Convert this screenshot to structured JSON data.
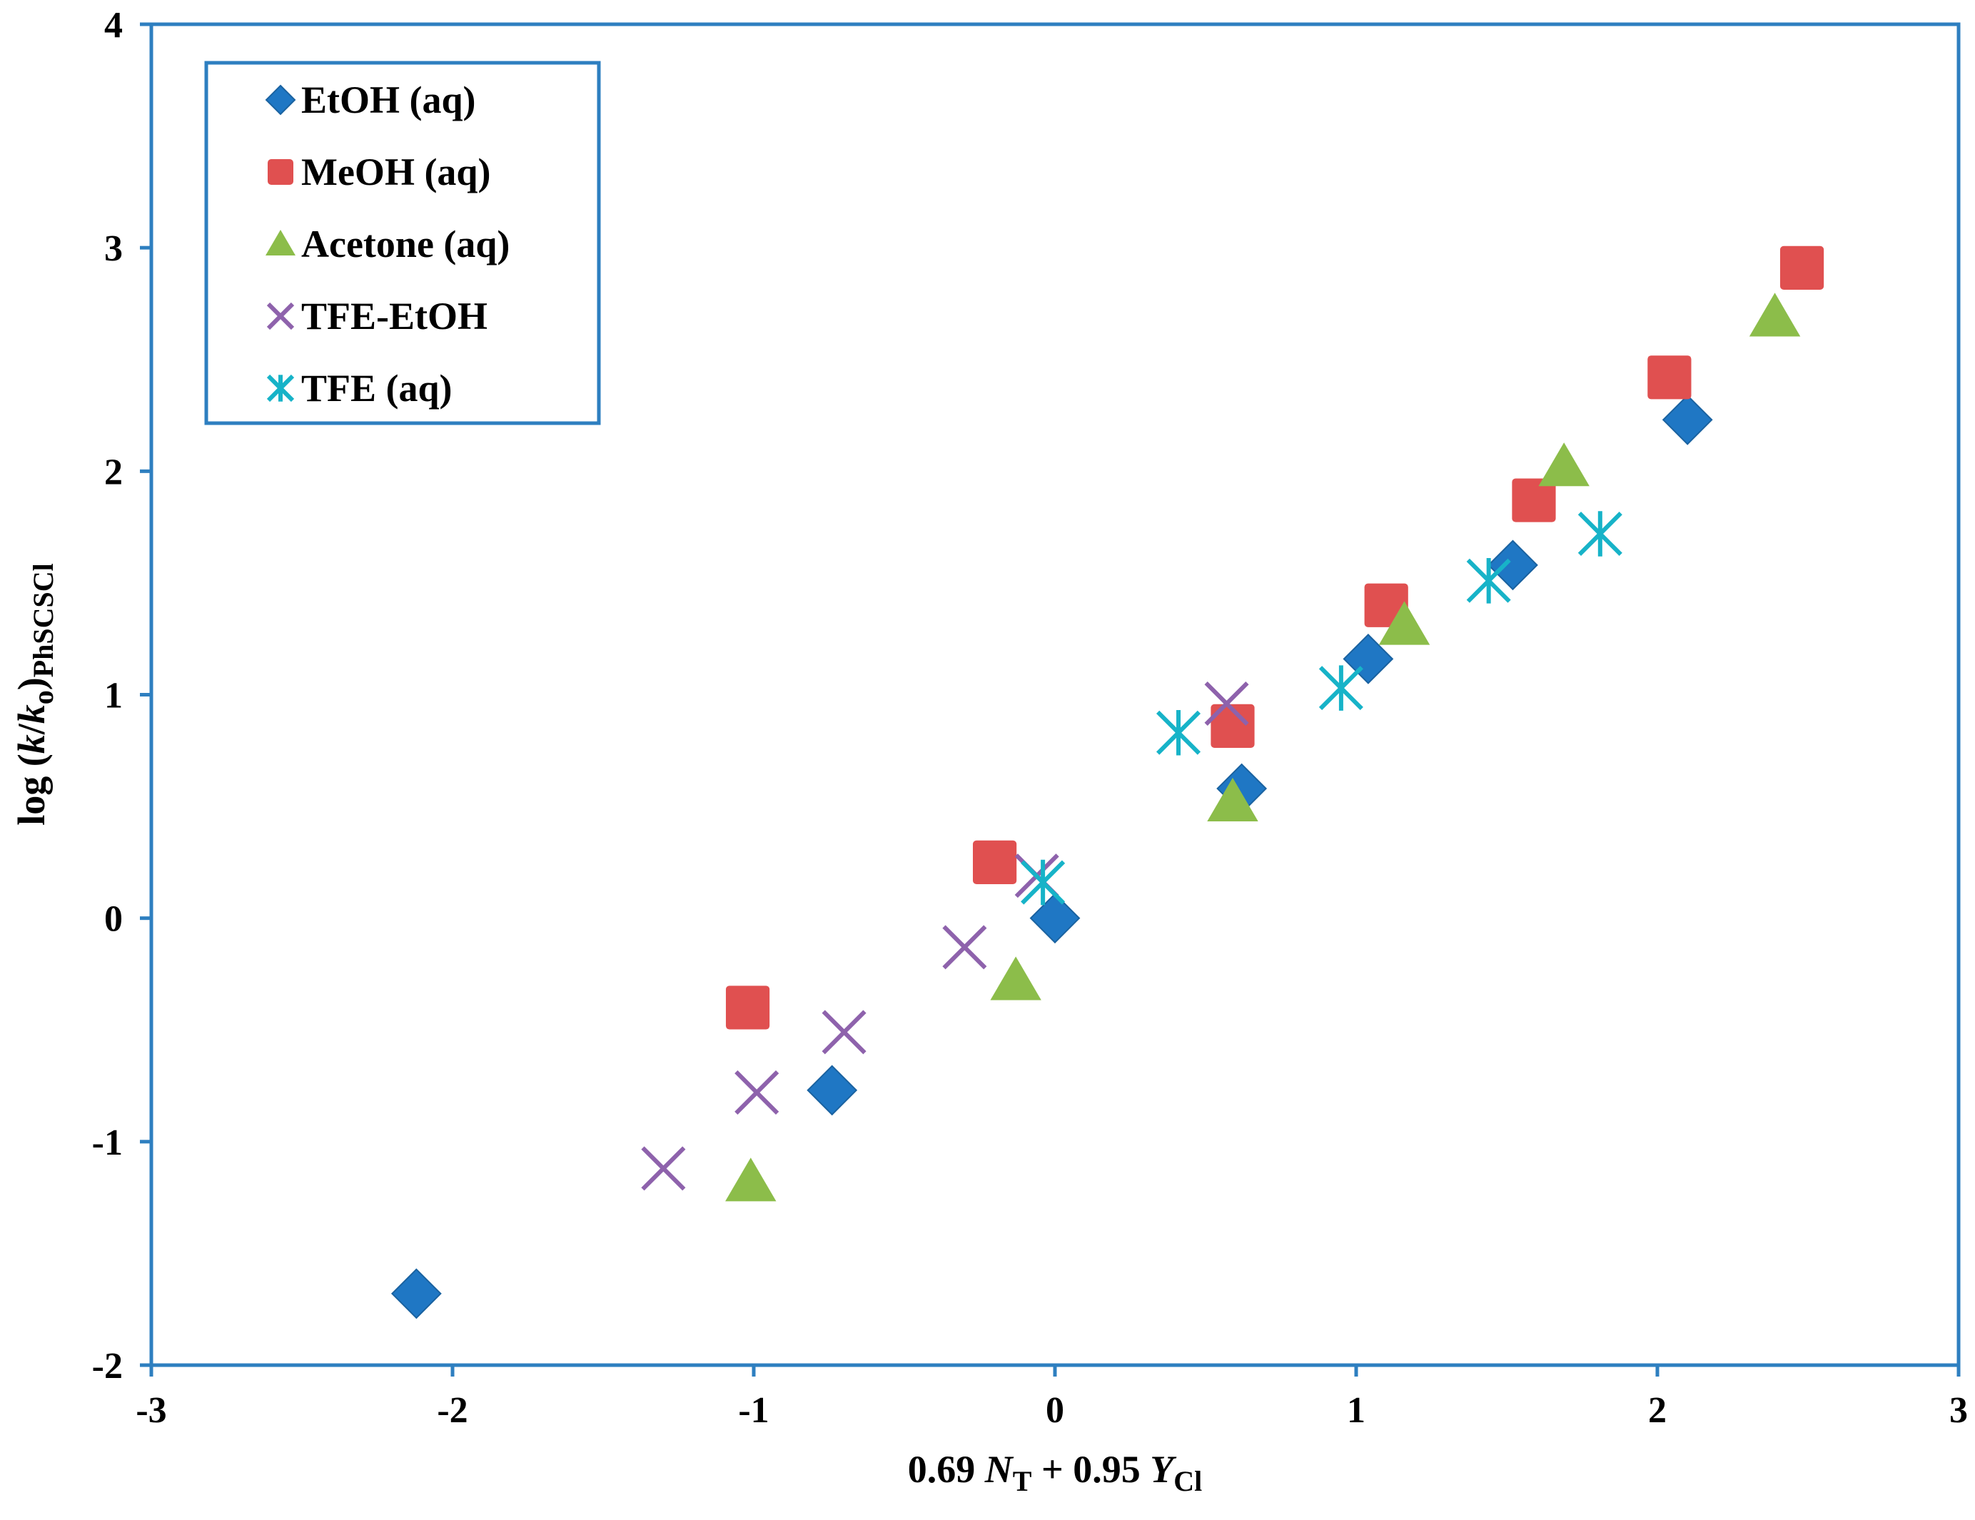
{
  "chart_data": {
    "type": "scatter",
    "title": "",
    "xlabel": {
      "parts": [
        {
          "text": "0.69 ",
          "style": "normal"
        },
        {
          "text": "N",
          "style": "italic"
        },
        {
          "text": "T",
          "style": "sub"
        },
        {
          "text": " + 0.95 ",
          "style": "normal"
        },
        {
          "text": "Y",
          "style": "italic"
        },
        {
          "text": "Cl",
          "style": "sub"
        }
      ]
    },
    "ylabel": {
      "parts": [
        {
          "text": "log (",
          "style": "normal"
        },
        {
          "text": "k",
          "style": "italic"
        },
        {
          "text": "/",
          "style": "normal"
        },
        {
          "text": "k",
          "style": "italic"
        },
        {
          "text": "o",
          "style": "sub"
        },
        {
          "text": ")",
          "style": "normal"
        },
        {
          "text": "PhSCSCl",
          "style": "sub"
        }
      ]
    },
    "xlim": [
      -3,
      3
    ],
    "ylim": [
      -2,
      4
    ],
    "xticks": [
      "-3",
      "-2",
      "-1",
      "0",
      "1",
      "2",
      "3"
    ],
    "yticks": [
      "-2",
      "-1",
      "0",
      "1",
      "2",
      "3",
      "4"
    ],
    "grid": false,
    "legend_position": "top-left",
    "series": [
      {
        "name": "EtOH (aq)",
        "marker": "diamond",
        "color": "#1f77c4",
        "points": [
          [
            -2.12,
            -1.68
          ],
          [
            -0.74,
            -0.77
          ],
          [
            0.0,
            0.0
          ],
          [
            0.62,
            0.58
          ],
          [
            1.04,
            1.16
          ],
          [
            1.52,
            1.58
          ],
          [
            2.1,
            2.23
          ]
        ]
      },
      {
        "name": "MeOH (aq)",
        "marker": "square",
        "color": "#e05050",
        "points": [
          [
            -1.02,
            -0.4
          ],
          [
            -0.2,
            0.25
          ],
          [
            0.59,
            0.86
          ],
          [
            1.1,
            1.4
          ],
          [
            1.59,
            1.87
          ],
          [
            2.04,
            2.42
          ],
          [
            2.48,
            2.91
          ]
        ]
      },
      {
        "name": "Acetone (aq)",
        "marker": "triangle",
        "color": "#8cbd4a",
        "points": [
          [
            -1.01,
            -1.18
          ],
          [
            -0.13,
            -0.28
          ],
          [
            0.59,
            0.52
          ],
          [
            1.16,
            1.31
          ],
          [
            1.69,
            2.02
          ],
          [
            2.39,
            2.69
          ]
        ]
      },
      {
        "name": "TFE-EtOH",
        "marker": "x",
        "color": "#8e62ac",
        "points": [
          [
            -1.3,
            -1.12
          ],
          [
            -0.99,
            -0.78
          ],
          [
            -0.7,
            -0.51
          ],
          [
            -0.3,
            -0.13
          ],
          [
            -0.06,
            0.19
          ],
          [
            0.57,
            0.96
          ]
        ]
      },
      {
        "name": "TFE (aq)",
        "marker": "asterisk",
        "color": "#17b3c8",
        "points": [
          [
            -0.04,
            0.16
          ],
          [
            0.41,
            0.83
          ],
          [
            0.95,
            1.03
          ],
          [
            1.44,
            1.51
          ],
          [
            1.81,
            1.72
          ]
        ]
      }
    ]
  }
}
